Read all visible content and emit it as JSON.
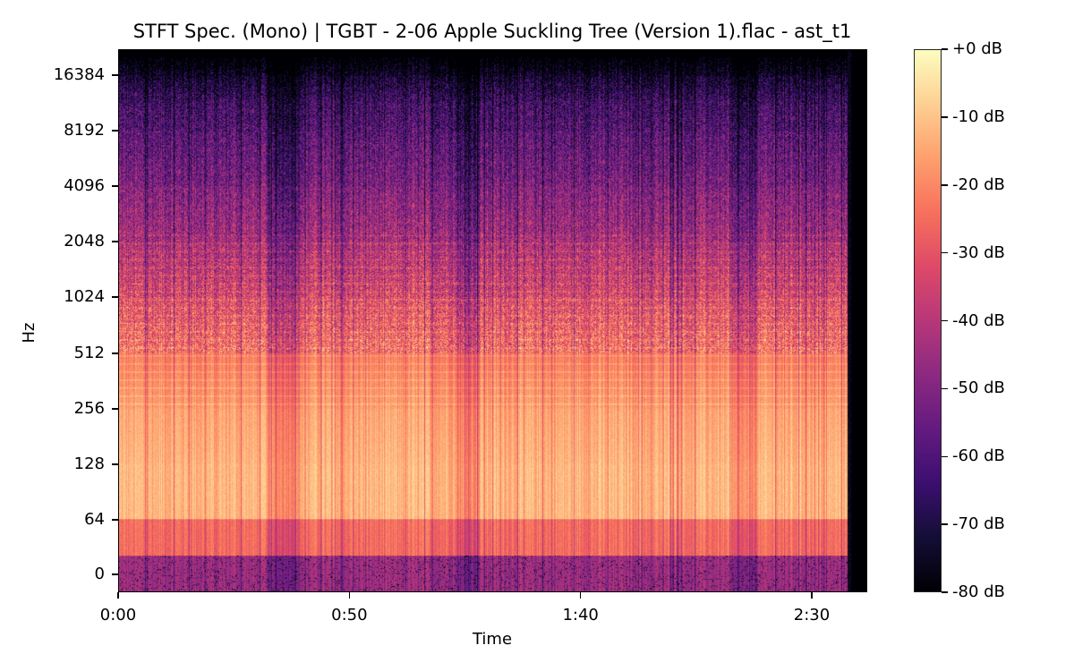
{
  "chart_data": {
    "type": "heatmap",
    "subtype": "stft-spectrogram",
    "title": "STFT Spec. (Mono) | TGBT - 2-06 Apple Suckling Tree (Version 1).flac - ast_t1",
    "xlabel": "Time",
    "ylabel": "Hz",
    "y_scale": "log2 (symlog near 0)",
    "colormap": "magma",
    "x_ticks": [
      {
        "label": "0:00",
        "seconds": 0
      },
      {
        "label": "0:50",
        "seconds": 50
      },
      {
        "label": "1:40",
        "seconds": 100
      },
      {
        "label": "2:30",
        "seconds": 150
      }
    ],
    "y_ticks": [
      {
        "label": "16384",
        "hz": 16384
      },
      {
        "label": "8192",
        "hz": 8192
      },
      {
        "label": "4096",
        "hz": 4096
      },
      {
        "label": "2048",
        "hz": 2048
      },
      {
        "label": "1024",
        "hz": 1024
      },
      {
        "label": "512",
        "hz": 512
      },
      {
        "label": "256",
        "hz": 256
      },
      {
        "label": "128",
        "hz": 128
      },
      {
        "label": "64",
        "hz": 64
      },
      {
        "label": "0",
        "hz": 0
      }
    ],
    "xlim_seconds": [
      0,
      162
    ],
    "audio_end_seconds": 158,
    "colorbar": {
      "label_format": "%+2.0f dB",
      "ticks": [
        "+0 dB",
        "-10 dB",
        "-20 dB",
        "-30 dB",
        "-40 dB",
        "-50 dB",
        "-60 dB",
        "-70 dB",
        "-80 dB"
      ],
      "range_db": [
        -80,
        0
      ]
    },
    "frequency_energy_profile_db": [
      {
        "band": "0-32 Hz",
        "typical_db": -45
      },
      {
        "band": "32-64 Hz",
        "typical_db": -25
      },
      {
        "band": "64-128 Hz",
        "typical_db": -12
      },
      {
        "band": "128-256 Hz",
        "typical_db": -15
      },
      {
        "band": "256-512 Hz",
        "typical_db": -22
      },
      {
        "band": "512-1024 Hz",
        "typical_db": -32
      },
      {
        "band": "1024-2048 Hz",
        "typical_db": -42
      },
      {
        "band": "2048-4096 Hz",
        "typical_db": -50
      },
      {
        "band": "4096-8192 Hz",
        "typical_db": -58
      },
      {
        "band": "8192-16384 Hz",
        "typical_db": -66
      },
      {
        "band": "16384+ Hz",
        "typical_db": -76
      }
    ],
    "quiet_segments_seconds": [
      {
        "start": 33,
        "end": 38,
        "note": "energy dip, low bands darker"
      },
      {
        "start": 74,
        "end": 77,
        "note": "energy dip"
      },
      {
        "start": 134,
        "end": 137,
        "note": "energy dip"
      },
      {
        "start": 158,
        "end": 162,
        "note": "silence after audio ends"
      }
    ],
    "grid": false,
    "legend": "colorbar right"
  }
}
